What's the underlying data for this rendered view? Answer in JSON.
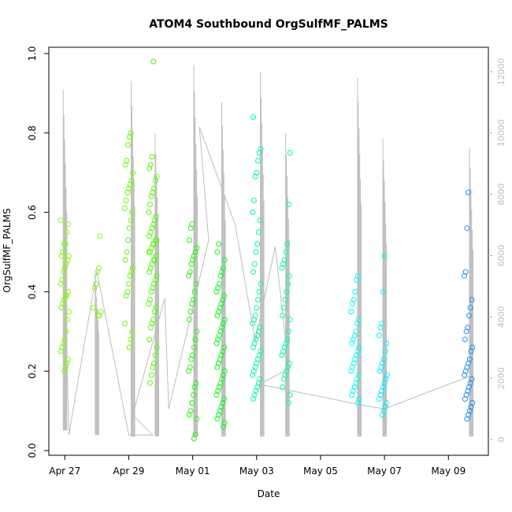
{
  "chart_data": {
    "type": "scatter",
    "title": "ATOM4 Southbound OrgSulfMF_PALMS",
    "xlabel": "Date",
    "ylabel": "OrgSulfMF_PALMS",
    "xlim": [
      "2018-04-26T12:00",
      "2018-05-10T06:00"
    ],
    "ylim": [
      0,
      1.0
    ],
    "y2lim": [
      0,
      12000
    ],
    "x_ticks": [
      {
        "date": "2018-04-27",
        "label": "Apr 27"
      },
      {
        "date": "2018-04-29",
        "label": "Apr 29"
      },
      {
        "date": "2018-05-01",
        "label": "May 01"
      },
      {
        "date": "2018-05-03",
        "label": "May 03"
      },
      {
        "date": "2018-05-05",
        "label": "May 05"
      },
      {
        "date": "2018-05-07",
        "label": "May 07"
      },
      {
        "date": "2018-05-09",
        "label": "May 09"
      }
    ],
    "y_ticks": [
      "0.0",
      "0.2",
      "0.4",
      "0.6",
      "0.8",
      "1.0"
    ],
    "y2_ticks": [
      "0",
      "2000",
      "4000",
      "6000",
      "8000",
      "10000",
      "12000"
    ],
    "grid": false,
    "series": [
      {
        "marker": "open-circle",
        "color_scale": "green-to-blue over time",
        "clusters": [
          {
            "t": "2018-04-27T00:00",
            "color": "#7fff00",
            "values": [
              0.58,
              0.57,
              0.55,
              0.52,
              0.52,
              0.5,
              0.49,
              0.49,
              0.48,
              0.47,
              0.46,
              0.45,
              0.43,
              0.42,
              0.4,
              0.39,
              0.39,
              0.38,
              0.37,
              0.36,
              0.35,
              0.33,
              0.3,
              0.28,
              0.27,
              0.26,
              0.25,
              0.23,
              0.22,
              0.21,
              0.2
            ]
          },
          {
            "t": "2018-04-28T00:00",
            "color": "#7fff00",
            "values": [
              0.54,
              0.46,
              0.45,
              0.42,
              0.41,
              0.36,
              0.35,
              0.34,
              0.34
            ]
          },
          {
            "t": "2018-04-29T00:00",
            "color": "#66ff00",
            "values": [
              0.8,
              0.79,
              0.77,
              0.73,
              0.72,
              0.7,
              0.68,
              0.67,
              0.66,
              0.65,
              0.63,
              0.61,
              0.6,
              0.58,
              0.56,
              0.53,
              0.5,
              0.48,
              0.46,
              0.45,
              0.44,
              0.42,
              0.4,
              0.39,
              0.32,
              0.3,
              0.28,
              0.26
            ]
          },
          {
            "t": "2018-04-29T18:00",
            "color": "#4dff00",
            "values": [
              0.98,
              0.74,
              0.72,
              0.71,
              0.69,
              0.68,
              0.66,
              0.65,
              0.64,
              0.62,
              0.6,
              0.59,
              0.58,
              0.57,
              0.56,
              0.55,
              0.54,
              0.53,
              0.53,
              0.52,
              0.52,
              0.51,
              0.5,
              0.5,
              0.49,
              0.48,
              0.48,
              0.47,
              0.46,
              0.45,
              0.44,
              0.43,
              0.42,
              0.41,
              0.4,
              0.38,
              0.37,
              0.36,
              0.35,
              0.33,
              0.32,
              0.31,
              0.28,
              0.26,
              0.24,
              0.22,
              0.21,
              0.19,
              0.17
            ]
          },
          {
            "t": "2018-05-01T00:00",
            "color": "#1aff00",
            "values": [
              0.57,
              0.56,
              0.53,
              0.51,
              0.5,
              0.49,
              0.48,
              0.47,
              0.45,
              0.44,
              0.42,
              0.4,
              0.38,
              0.37,
              0.35,
              0.33,
              0.3,
              0.28,
              0.26,
              0.24,
              0.23,
              0.21,
              0.2,
              0.17,
              0.16,
              0.14,
              0.12,
              0.1,
              0.09,
              0.08,
              0.04,
              0.03
            ]
          },
          {
            "t": "2018-05-01T21:00",
            "color": "#00ff1a",
            "values": [
              0.52,
              0.5,
              0.48,
              0.46,
              0.45,
              0.44,
              0.42,
              0.41,
              0.4,
              0.39,
              0.38,
              0.37,
              0.36,
              0.35,
              0.34,
              0.33,
              0.32,
              0.31,
              0.3,
              0.29,
              0.28,
              0.27,
              0.26,
              0.25,
              0.24,
              0.23,
              0.22,
              0.21,
              0.2,
              0.19,
              0.18,
              0.17,
              0.16,
              0.15,
              0.14,
              0.13,
              0.12,
              0.11,
              0.1,
              0.09,
              0.08,
              0.07,
              0.06
            ]
          },
          {
            "t": "2018-05-03T00:00",
            "color": "#00ff99",
            "values": [
              0.84,
              0.76,
              0.75,
              0.73,
              0.7,
              0.69,
              0.63,
              0.6,
              0.58,
              0.55,
              0.52,
              0.5,
              0.47,
              0.45,
              0.42,
              0.4,
              0.38,
              0.36,
              0.34,
              0.33,
              0.32,
              0.31,
              0.3,
              0.29,
              0.28,
              0.27,
              0.26,
              0.25,
              0.24,
              0.23,
              0.22,
              0.21,
              0.2,
              0.19,
              0.18,
              0.17,
              0.16,
              0.15,
              0.14,
              0.13
            ]
          },
          {
            "t": "2018-05-03T22:00",
            "color": "#00ffaa",
            "values": [
              0.75,
              0.62,
              0.52,
              0.5,
              0.48,
              0.47,
              0.46,
              0.44,
              0.42,
              0.4,
              0.38,
              0.36,
              0.34,
              0.33,
              0.3,
              0.28,
              0.27,
              0.26,
              0.25,
              0.24,
              0.22,
              0.21,
              0.2,
              0.19,
              0.18,
              0.16,
              0.14,
              0.12
            ]
          },
          {
            "t": "2018-05-06T02:00",
            "color": "#00ffff",
            "values": [
              0.44,
              0.43,
              0.4,
              0.38,
              0.37,
              0.35,
              0.33,
              0.32,
              0.3,
              0.29,
              0.28,
              0.27,
              0.26,
              0.25,
              0.24,
              0.23,
              0.22,
              0.21,
              0.2,
              0.19,
              0.18,
              0.17,
              0.16,
              0.15,
              0.14,
              0.13,
              0.12
            ]
          },
          {
            "t": "2018-05-06T23:00",
            "color": "#00f2ff",
            "values": [
              0.49,
              0.4,
              0.32,
              0.31,
              0.29,
              0.27,
              0.25,
              0.23,
              0.22,
              0.21,
              0.2,
              0.19,
              0.18,
              0.17,
              0.16,
              0.15,
              0.14,
              0.13,
              0.12,
              0.11,
              0.1,
              0.09
            ]
          },
          {
            "t": "2018-05-09T15:00",
            "color": "#1a90ff",
            "values": [
              0.65,
              0.56,
              0.45,
              0.44,
              0.38,
              0.36,
              0.34,
              0.31,
              0.3,
              0.28,
              0.26,
              0.25,
              0.23,
              0.22,
              0.21,
              0.2,
              0.19,
              0.18,
              0.17,
              0.16,
              0.15,
              0.14,
              0.13,
              0.12,
              0.11,
              0.1,
              0.09,
              0.08
            ]
          }
        ]
      },
      {
        "axis": "right",
        "color": "#bdbdbd",
        "style": "line",
        "profiles": [
          {
            "t": "2018-04-27T00:00",
            "top": 11400,
            "bottom": 300
          },
          {
            "t": "2018-04-28T00:00",
            "top": 5400,
            "bottom": 150
          },
          {
            "t": "2018-04-29T03:00",
            "top": 11700,
            "bottom": 100
          },
          {
            "t": "2018-04-29T21:00",
            "top": 10000,
            "bottom": 100
          },
          {
            "t": "2018-05-01T02:00",
            "top": 12200,
            "bottom": 100
          },
          {
            "t": "2018-05-01T23:00",
            "top": 11000,
            "bottom": 100
          },
          {
            "t": "2018-05-03T04:00",
            "top": 12000,
            "bottom": 100
          },
          {
            "t": "2018-05-03T23:00",
            "top": 10000,
            "bottom": 100
          },
          {
            "t": "2018-05-06T05:00",
            "top": 11800,
            "bottom": 100
          },
          {
            "t": "2018-05-07T00:00",
            "top": 9800,
            "bottom": 100
          },
          {
            "t": "2018-05-09T17:00",
            "top": 9500,
            "bottom": 100
          }
        ],
        "path": [
          {
            "t": "2018-04-27T00:00",
            "y": 5500
          },
          {
            "t": "2018-04-27T03:00",
            "y": 150
          },
          {
            "t": "2018-04-28T00:00",
            "y": 5500
          },
          {
            "t": "2018-04-29T00:00",
            "y": 150
          },
          {
            "t": "2018-04-29T18:00",
            "y": 150
          },
          {
            "t": "2018-04-29T03:00",
            "y": 800
          },
          {
            "t": "2018-04-30T03:00",
            "y": 4600
          },
          {
            "t": "2018-04-30T06:00",
            "y": 1000
          },
          {
            "t": "2018-05-01T12:00",
            "y": 6500
          },
          {
            "t": "2018-05-01T05:00",
            "y": 10200
          },
          {
            "t": "2018-05-02T08:00",
            "y": 7000
          },
          {
            "t": "2018-05-02T23:00",
            "y": 3200
          },
          {
            "t": "2018-05-03T14:00",
            "y": 6300
          },
          {
            "t": "2018-05-04T00:00",
            "y": 2300
          },
          {
            "t": "2018-05-03T02:00",
            "y": 1800
          },
          {
            "t": "2018-05-06T10:00",
            "y": 1100
          },
          {
            "t": "2018-05-07T00:00",
            "y": 1000
          },
          {
            "t": "2018-05-09T18:00",
            "y": 2100
          }
        ]
      }
    ]
  }
}
